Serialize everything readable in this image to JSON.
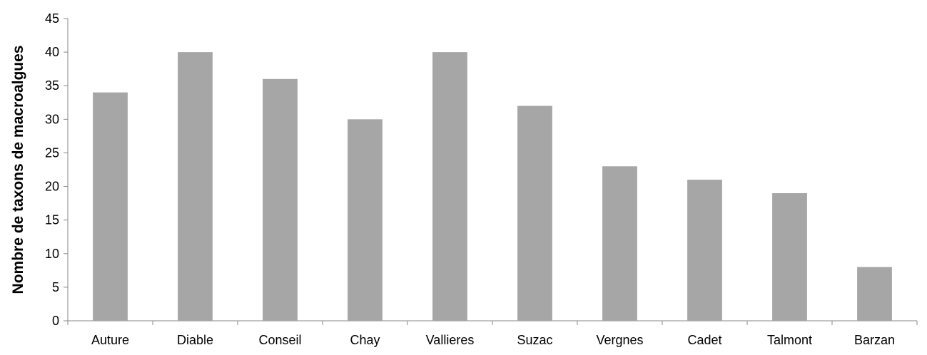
{
  "chart_data": {
    "type": "bar",
    "title": "",
    "xlabel": "",
    "ylabel": "Nombre de taxons de macroalgues",
    "ylim": [
      0,
      45
    ],
    "yticks": [
      0,
      5,
      10,
      15,
      20,
      25,
      30,
      35,
      40,
      45
    ],
    "grid": false,
    "legend": "none",
    "bar_color": "#a6a6a6",
    "categories": [
      "Auture",
      "Diable",
      "Conseil",
      "Chay",
      "Vallieres",
      "Suzac",
      "Vergnes",
      "Cadet",
      "Talmont",
      "Barzan"
    ],
    "values": [
      34,
      40,
      36,
      30,
      40,
      32,
      23,
      21,
      19,
      8
    ]
  }
}
